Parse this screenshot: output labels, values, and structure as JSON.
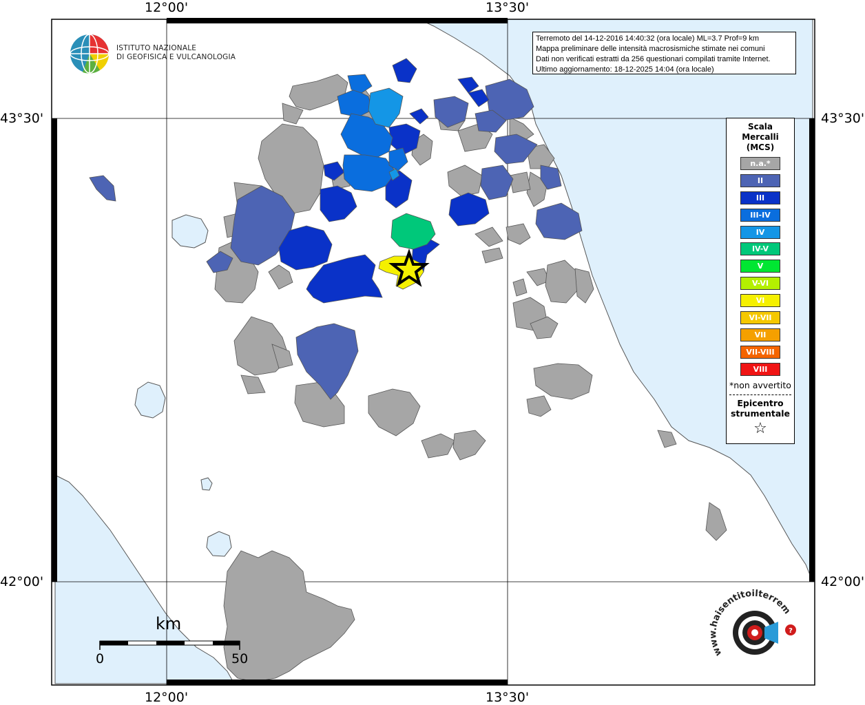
{
  "coords": {
    "top_left": "12°00'",
    "top_right": "13°30'",
    "bottom_left": "12°00'",
    "bottom_right": "13°30'",
    "left_upper": "43°30'",
    "left_lower": "42°00'",
    "right_upper": "43°30'",
    "right_lower": "42°00'"
  },
  "info": {
    "line1": "Terremoto del 14-12-2016 14:40:32 (ora locale) ML=3.7 Prof=9 km",
    "line2": "Mappa preliminare delle intensità macrosismiche stimate nei comuni",
    "line3": "Dati non verificati estratti da 256 questionari compilati tramite Internet.",
    "line4": "Ultimo aggiornamento: 18-12-2025 14:04 (ora locale)"
  },
  "logo": {
    "line1": "ISTITUTO NAZIONALE",
    "line2": "DI GEOFISICA E VULCANOLOGIA"
  },
  "legend": {
    "title1": "Scala",
    "title2": "Mercalli",
    "title3": "(MCS)",
    "items": [
      {
        "label": "n.a.*",
        "color": "#a6a6a6"
      },
      {
        "label": "II",
        "color": "#4d64b4"
      },
      {
        "label": "III",
        "color": "#0a32c8"
      },
      {
        "label": "III-IV",
        "color": "#0a6ede"
      },
      {
        "label": "IV",
        "color": "#1496e6"
      },
      {
        "label": "IV-V",
        "color": "#00c87a"
      },
      {
        "label": "V",
        "color": "#00e632"
      },
      {
        "label": "V-VI",
        "color": "#b4f000"
      },
      {
        "label": "VI",
        "color": "#f5f000"
      },
      {
        "label": "VI-VII",
        "color": "#f5c800"
      },
      {
        "label": "VII",
        "color": "#f5a000"
      },
      {
        "label": "VII-VIII",
        "color": "#f56400"
      },
      {
        "label": "VIII",
        "color": "#f01414"
      }
    ],
    "note": "*non avvertito",
    "epi1": "Epicentro",
    "epi2": "strumentale",
    "epi_symbol": "☆"
  },
  "scalebar": {
    "unit": "km",
    "start": "0",
    "end": "50"
  },
  "watermark": {
    "text": "www.haisentitoilterremoto.it"
  },
  "colors": {
    "sea": "#dff0fc",
    "na": "#a6a6a6",
    "ii": "#4d64b4",
    "iii": "#0a32c8",
    "iii_iv": "#0a6ede",
    "iv": "#1496e6",
    "iv_v": "#00c87a",
    "vi": "#f5f000"
  }
}
